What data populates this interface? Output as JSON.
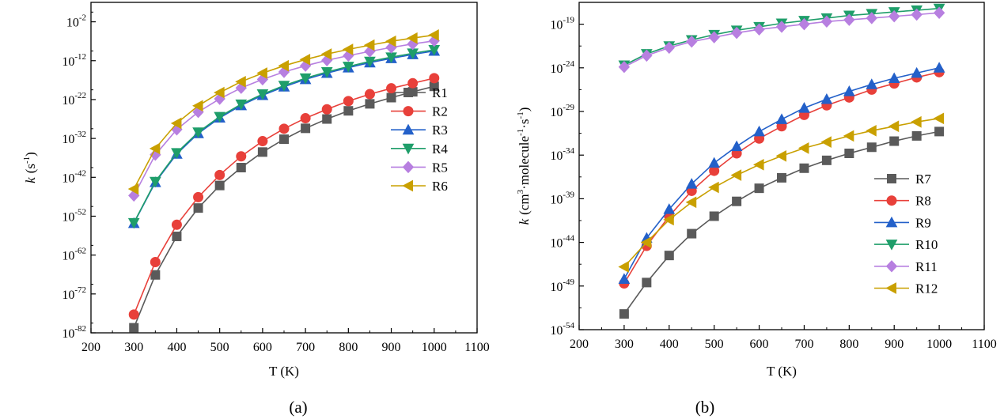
{
  "figure": {
    "caption_a": "(a)",
    "caption_b": "(b)"
  },
  "chart_data": [
    {
      "type": "line",
      "panel": "(a)",
      "xlabel": "T (K)",
      "ylabel_base": "k",
      "ylabel_unit": "(s",
      "ylabel_unit_sup": "-1",
      "ylabel_unit_end": ")",
      "xlim": [
        200,
        1100
      ],
      "xticks": [
        "200",
        "300",
        "400",
        "500",
        "600",
        "700",
        "800",
        "900",
        "1000",
        "1100"
      ],
      "yscale": "log",
      "ylim_exp": [
        -82,
        3
      ],
      "yticks_exp": [
        "-82",
        "-72",
        "-62",
        "-52",
        "-42",
        "-32",
        "-22",
        "-12",
        "-2"
      ],
      "legend_position": "right",
      "x": [
        300,
        350,
        400,
        450,
        500,
        550,
        600,
        650,
        700,
        750,
        800,
        850,
        900,
        950,
        1000
      ],
      "series": [
        {
          "name": "R1",
          "color": "#5a5a5a",
          "marker": "square",
          "log10_values": [
            -80.7,
            -67.1,
            -57.2,
            -49.9,
            -44.1,
            -39.5,
            -35.5,
            -32.2,
            -29.4,
            -27.0,
            -24.9,
            -23.1,
            -21.5,
            -20.0,
            -18.6
          ]
        },
        {
          "name": "R2",
          "color": "#e8403a",
          "marker": "circle",
          "log10_values": [
            -77.3,
            -63.8,
            -54.2,
            -47.1,
            -41.4,
            -36.6,
            -32.7,
            -29.5,
            -26.8,
            -24.5,
            -22.4,
            -20.6,
            -19.1,
            -17.8,
            -16.5
          ]
        },
        {
          "name": "R3",
          "color": "#2360c9",
          "marker": "triangle-up",
          "log10_values": [
            -53.8,
            -43.3,
            -36.0,
            -30.7,
            -26.7,
            -23.5,
            -20.9,
            -18.7,
            -16.8,
            -15.2,
            -13.8,
            -12.5,
            -11.4,
            -10.4,
            -9.5
          ]
        },
        {
          "name": "R4",
          "color": "#1f9e6a",
          "marker": "triangle-down",
          "log10_values": [
            -53.7,
            -43.1,
            -35.7,
            -30.4,
            -26.4,
            -23.2,
            -20.6,
            -18.4,
            -16.5,
            -14.9,
            -13.5,
            -12.2,
            -11.1,
            -10.1,
            -9.2
          ]
        },
        {
          "name": "R5",
          "color": "#b77fe0",
          "marker": "diamond",
          "log10_values": [
            -46.7,
            -36.2,
            -29.7,
            -25.2,
            -21.8,
            -19.0,
            -16.8,
            -14.9,
            -13.3,
            -11.9,
            -10.7,
            -9.6,
            -8.6,
            -7.7,
            -6.9
          ]
        },
        {
          "name": "R6",
          "color": "#c9a000",
          "marker": "triangle-left",
          "log10_values": [
            -45.0,
            -34.6,
            -28.1,
            -23.6,
            -20.2,
            -17.4,
            -15.2,
            -13.3,
            -11.7,
            -10.3,
            -9.1,
            -8.0,
            -7.0,
            -6.2,
            -5.4
          ]
        }
      ]
    },
    {
      "type": "line",
      "panel": "(b)",
      "xlabel": "T (K)",
      "ylabel_base": "k",
      "ylabel_unit": "(cm",
      "ylabel_unit_sup1": "3",
      "ylabel_unit_mid": "·molecule",
      "ylabel_unit_sup2": "-1",
      "ylabel_unit_mid2": "·s",
      "ylabel_unit_sup3": "-1",
      "ylabel_unit_end": ")",
      "xlim": [
        200,
        1100
      ],
      "xticks": [
        "200",
        "300",
        "400",
        "500",
        "600",
        "700",
        "800",
        "900",
        "1000",
        "1100"
      ],
      "yscale": "log",
      "ylim_exp": [
        -54,
        -16.5
      ],
      "yticks_exp": [
        "-54",
        "-49",
        "-44",
        "-39",
        "-34",
        "-29",
        "-24",
        "-19"
      ],
      "legend_position": "bottom-right",
      "x": [
        300,
        350,
        400,
        450,
        500,
        550,
        600,
        650,
        700,
        750,
        800,
        850,
        900,
        950,
        1000
      ],
      "series": [
        {
          "name": "R7",
          "color": "#5a5a5a",
          "marker": "square",
          "log10_values": [
            -52.2,
            -48.6,
            -45.5,
            -43.0,
            -41.0,
            -39.3,
            -37.8,
            -36.6,
            -35.5,
            -34.6,
            -33.8,
            -33.1,
            -32.4,
            -31.8,
            -31.3
          ]
        },
        {
          "name": "R8",
          "color": "#e8403a",
          "marker": "circle",
          "log10_values": [
            -48.7,
            -44.4,
            -41.0,
            -38.1,
            -35.8,
            -33.8,
            -32.1,
            -30.7,
            -29.4,
            -28.3,
            -27.4,
            -26.5,
            -25.8,
            -25.1,
            -24.5
          ]
        },
        {
          "name": "R9",
          "color": "#2360c9",
          "marker": "triangle-up",
          "log10_values": [
            -48.2,
            -43.5,
            -40.2,
            -37.3,
            -34.9,
            -33.0,
            -31.3,
            -29.9,
            -28.6,
            -27.6,
            -26.7,
            -25.9,
            -25.2,
            -24.6,
            -24.0
          ]
        },
        {
          "name": "R10",
          "color": "#1f9e6a",
          "marker": "triangle-down",
          "log10_values": [
            -23.7,
            -22.4,
            -21.5,
            -20.8,
            -20.2,
            -19.7,
            -19.3,
            -18.9,
            -18.6,
            -18.3,
            -18.0,
            -17.8,
            -17.6,
            -17.4,
            -17.2
          ]
        },
        {
          "name": "R11",
          "color": "#b77fe0",
          "marker": "diamond",
          "log10_values": [
            -23.9,
            -22.6,
            -21.7,
            -21.0,
            -20.5,
            -20.0,
            -19.6,
            -19.3,
            -19.0,
            -18.7,
            -18.5,
            -18.3,
            -18.1,
            -17.9,
            -17.7
          ]
        },
        {
          "name": "R12",
          "color": "#c9a000",
          "marker": "triangle-left",
          "log10_values": [
            -46.8,
            -44.0,
            -41.4,
            -39.4,
            -37.7,
            -36.3,
            -35.1,
            -34.1,
            -33.2,
            -32.5,
            -31.8,
            -31.2,
            -30.7,
            -30.2,
            -29.8
          ]
        }
      ]
    }
  ]
}
